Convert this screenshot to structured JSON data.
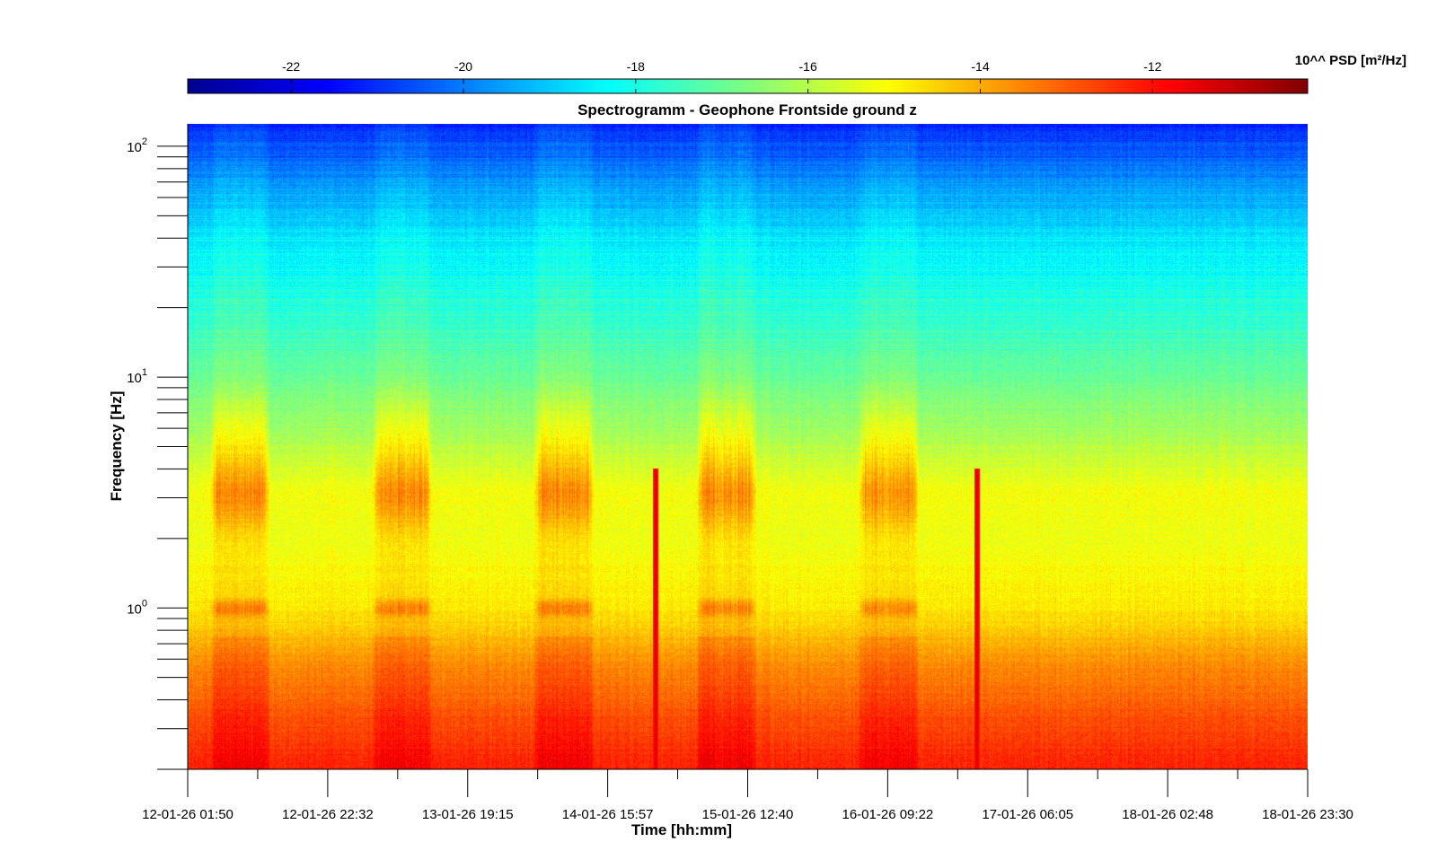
{
  "chart_data": {
    "type": "heatmap",
    "title": "Spectrogramm - Geophone Frontside ground z",
    "xlabel": "Time [hh:mm]",
    "ylabel": "Frequency [Hz]",
    "y_scale": "log",
    "ylim": [
      0.2,
      125
    ],
    "y_tick_labels": [
      {
        "base": "10",
        "exp": "0",
        "value": 1
      },
      {
        "base": "10",
        "exp": "1",
        "value": 10
      },
      {
        "base": "10",
        "exp": "2",
        "value": 100
      }
    ],
    "x_tick_labels": [
      "12-01-26 01:50",
      "12-01-26 22:32",
      "13-01-26 19:15",
      "14-01-26 15:57",
      "15-01-26 12:40",
      "16-01-26 09:22",
      "17-01-26 06:05",
      "18-01-26 02:48",
      "18-01-26 23:30"
    ],
    "colorbar": {
      "label": "10^^ PSD [m²/Hz]",
      "range": [
        -23.2,
        -10.2
      ],
      "tick_labels": [
        "-22",
        "-20",
        "-18",
        "-16",
        "-14",
        "-12"
      ],
      "tick_values": [
        -22,
        -20,
        -18,
        -16,
        -14,
        -12
      ],
      "colormap": "jet"
    },
    "psd_profile_log10": [
      {
        "hz": 0.2,
        "psd": -12.2
      },
      {
        "hz": 0.35,
        "psd": -12.9
      },
      {
        "hz": 0.6,
        "psd": -13.7
      },
      {
        "hz": 0.8,
        "psd": -14.4
      },
      {
        "hz": 1.0,
        "psd": -14.8
      },
      {
        "hz": 2.0,
        "psd": -15.3
      },
      {
        "hz": 3.2,
        "psd": -15.2
      },
      {
        "hz": 6.0,
        "psd": -16.3
      },
      {
        "hz": 10.0,
        "psd": -17.0
      },
      {
        "hz": 20.0,
        "psd": -17.8
      },
      {
        "hz": 40.0,
        "psd": -18.6
      },
      {
        "hz": 70.0,
        "psd": -19.7
      },
      {
        "hz": 100.0,
        "psd": -20.6
      },
      {
        "hz": 125.0,
        "psd": -21.2
      }
    ],
    "activity_periods": [
      {
        "start": "12-01-26 06:00",
        "end": "12-01-26 13:00"
      },
      {
        "start": "13-01-26 06:00",
        "end": "13-01-26 13:00"
      },
      {
        "start": "14-01-26 06:00",
        "end": "14-01-26 13:00"
      },
      {
        "start": "15-01-26 06:00",
        "end": "15-01-26 13:00"
      },
      {
        "start": "16-01-26 06:00",
        "end": "16-01-26 13:00"
      }
    ],
    "broadband_events": [
      {
        "time": "14-01-26 23:00"
      },
      {
        "time": "16-01-26 22:30"
      }
    ]
  }
}
